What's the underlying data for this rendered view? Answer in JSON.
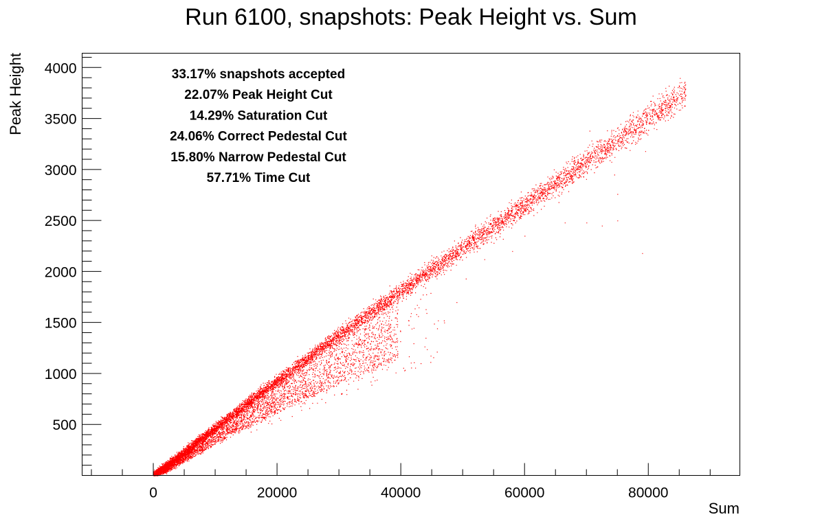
{
  "chart_data": {
    "type": "scatter",
    "title": "Run 6100, snapshots: Peak Height vs. Sum",
    "xlabel": "Sum",
    "ylabel": "Peak Height",
    "xlim": [
      -11500,
      94800
    ],
    "ylim": [
      0,
      4140
    ],
    "x_ticks": [
      0,
      20000,
      40000,
      60000,
      80000
    ],
    "x_tick_labels": [
      "0",
      "20000",
      "40000",
      "60000",
      "80000"
    ],
    "y_ticks": [
      500,
      1000,
      1500,
      2000,
      2500,
      3000,
      3500,
      4000
    ],
    "y_tick_labels": [
      "500",
      "1000",
      "1500",
      "2000",
      "2500",
      "3000",
      "3500",
      "4000"
    ],
    "marker_color": "#ff0000",
    "grid": false,
    "annotations": [
      "33.17% snapshots accepted",
      "22.07% Peak Height Cut",
      "14.29% Saturation Cut",
      "24.06% Correct Pedestal Cut",
      "15.80% Narrow Pedestal Cut",
      "57.71% Time Cut"
    ],
    "main_band": {
      "x": [
        0,
        10000,
        20000,
        30000,
        40000,
        50000,
        60000,
        70000,
        80000,
        86000
      ],
      "y": [
        0,
        470,
        930,
        1380,
        1810,
        2230,
        2650,
        3070,
        3510,
        3760
      ]
    },
    "lower_branch": {
      "x": [
        2000,
        10000,
        20000,
        30000,
        40000
      ],
      "y": [
        40,
        320,
        620,
        900,
        1150
      ]
    },
    "outliers": [
      {
        "x": 47000,
        "y": 1500
      },
      {
        "x": 42500,
        "y": 1580
      },
      {
        "x": 38000,
        "y": 1150
      },
      {
        "x": 46000,
        "y": 1520
      },
      {
        "x": 50500,
        "y": 1930
      },
      {
        "x": 53500,
        "y": 2120
      },
      {
        "x": 55000,
        "y": 2280
      },
      {
        "x": 56500,
        "y": 2320
      },
      {
        "x": 62000,
        "y": 2580
      },
      {
        "x": 65500,
        "y": 2680
      },
      {
        "x": 66500,
        "y": 2480
      },
      {
        "x": 70000,
        "y": 2480
      },
      {
        "x": 72500,
        "y": 2450
      },
      {
        "x": 74500,
        "y": 2950
      },
      {
        "x": 75000,
        "y": 2760
      },
      {
        "x": 79000,
        "y": 2180
      },
      {
        "x": 79500,
        "y": 3180
      },
      {
        "x": 77000,
        "y": 3190
      },
      {
        "x": 70500,
        "y": 3380
      },
      {
        "x": 75000,
        "y": 2500
      },
      {
        "x": 60000,
        "y": 2350
      },
      {
        "x": 58000,
        "y": 2200
      },
      {
        "x": 49000,
        "y": 1700
      },
      {
        "x": 44000,
        "y": 1350
      }
    ]
  }
}
